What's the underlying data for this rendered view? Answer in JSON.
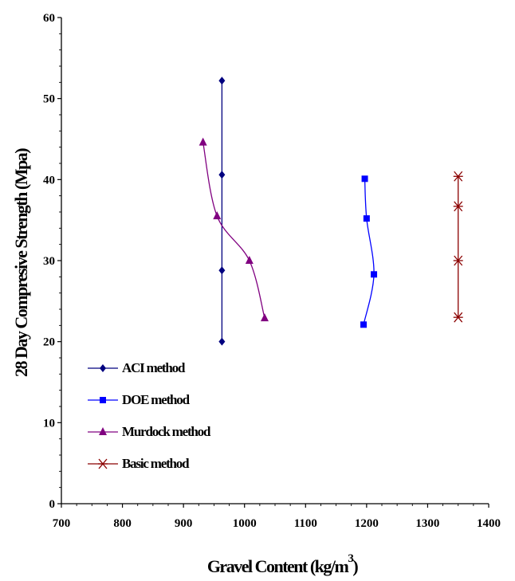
{
  "chart_data": {
    "type": "line",
    "title": "",
    "xlabel": "Gravel Content (kg/m",
    "xlabel_sup": "3",
    "xlabel_end": ")",
    "ylabel": "28 Day Compresive Strength (Mpa)",
    "xlim": [
      700,
      1400
    ],
    "ylim": [
      0,
      60
    ],
    "x_ticks": [
      700,
      800,
      900,
      1000,
      1100,
      1200,
      1300,
      1400
    ],
    "y_ticks": [
      0,
      10,
      20,
      30,
      40,
      50,
      60
    ],
    "grid": false,
    "legend_position": "bottom-left",
    "series": [
      {
        "name": "ACI method",
        "color": "#00007f",
        "marker": "diamond",
        "smooth": false,
        "points": [
          [
            963,
            52.2
          ],
          [
            963,
            40.6
          ],
          [
            963,
            28.8
          ],
          [
            963,
            20.0
          ]
        ]
      },
      {
        "name": "DOE method",
        "color": "#0000ff",
        "marker": "square",
        "smooth": true,
        "points": [
          [
            1197,
            40.1
          ],
          [
            1200,
            35.2
          ],
          [
            1212,
            28.3
          ],
          [
            1195,
            22.1
          ]
        ]
      },
      {
        "name": "Murdock method",
        "color": "#800080",
        "marker": "triangle",
        "smooth": true,
        "points": [
          [
            932,
            44.6
          ],
          [
            955,
            35.5
          ],
          [
            1008,
            30.0
          ],
          [
            1033,
            22.9
          ]
        ]
      },
      {
        "name": "Basic method",
        "color": "#8b0000",
        "marker": "star",
        "smooth": false,
        "points": [
          [
            1350,
            40.4
          ],
          [
            1350,
            36.7
          ],
          [
            1350,
            30.0
          ],
          [
            1350,
            23.0
          ]
        ]
      }
    ]
  }
}
